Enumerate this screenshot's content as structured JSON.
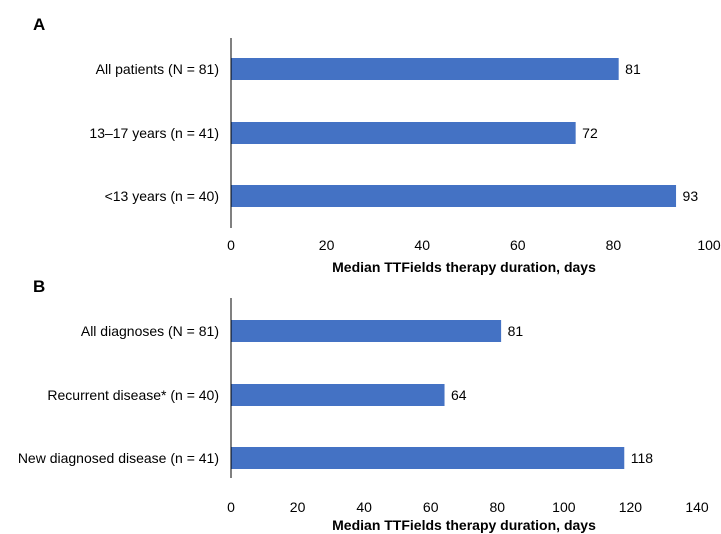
{
  "bar_color": "#4472C4",
  "chart_data": [
    {
      "type": "bar",
      "orientation": "horizontal",
      "panel": "A",
      "title": "",
      "categories": [
        "All patients (N = 81)",
        "13–17 years (n = 41)",
        "<13 years (n = 40)"
      ],
      "values": [
        81,
        72,
        93
      ],
      "value_labels": [
        "81",
        "72",
        "93"
      ],
      "xlabel": "Median TTFields therapy duration, days",
      "ylabel": "",
      "xlim": [
        0,
        100
      ],
      "xticks": [
        "0",
        "20",
        "40",
        "60",
        "80",
        "100"
      ],
      "grid": false
    },
    {
      "type": "bar",
      "orientation": "horizontal",
      "panel": "B",
      "title": "",
      "categories": [
        "All diagnoses (N = 81)",
        "Recurrent disease* (n = 40)",
        "New diagnosed disease (n = 41)"
      ],
      "values": [
        81,
        64,
        118
      ],
      "value_labels": [
        "81",
        "64",
        "118"
      ],
      "xlabel": "Median TTFields therapy duration, days",
      "ylabel": "",
      "xlim": [
        0,
        140
      ],
      "xticks": [
        "0",
        "20",
        "40",
        "60",
        "80",
        "100",
        "120",
        "140"
      ],
      "grid": false
    }
  ]
}
